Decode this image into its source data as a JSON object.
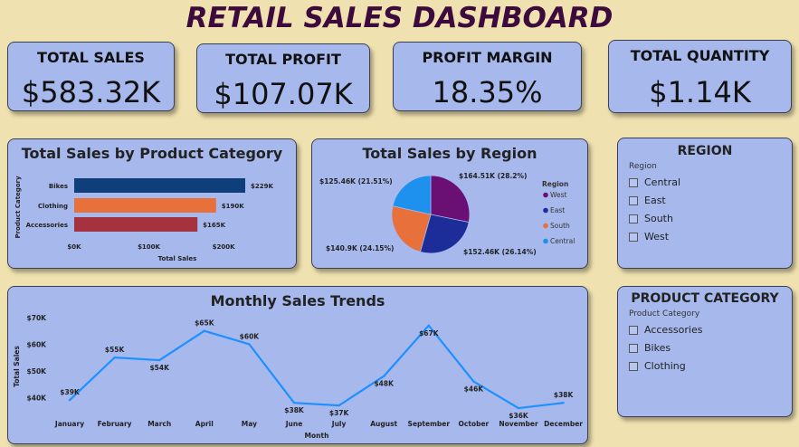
{
  "title": "RETAIL SALES DASHBOARD",
  "kpis": [
    {
      "label": "TOTAL SALES",
      "value": "$583.32K"
    },
    {
      "label": "TOTAL PROFIT",
      "value": "$107.07K"
    },
    {
      "label": "PROFIT MARGIN",
      "value": "18.35%"
    },
    {
      "label": "TOTAL QUANTITY",
      "value": "$1.14K"
    }
  ],
  "region_slicer": {
    "title": "REGION",
    "field": "Region",
    "items": [
      "Central",
      "East",
      "South",
      "West"
    ]
  },
  "category_slicer": {
    "title": "PRODUCT CATEGORY",
    "field": "Product Category",
    "items": [
      "Accessories",
      "Bikes",
      "Clothing"
    ]
  },
  "chart_data": [
    {
      "type": "bar",
      "orientation": "horizontal",
      "title": "Total Sales by Product Category",
      "xlabel": "Total Sales",
      "ylabel": "Product Category",
      "categories": [
        "Bikes",
        "Clothing",
        "Accessories"
      ],
      "values": [
        229,
        190,
        165
      ],
      "data_labels": [
        "$229K",
        "$190K",
        "$165K"
      ],
      "xticks": [
        "$0K",
        "$100K",
        "$200K"
      ],
      "xlim": [
        0,
        229
      ],
      "colors": [
        "#0f3f7a",
        "#e8703a",
        "#a5323f"
      ]
    },
    {
      "type": "pie",
      "title": "Total Sales by Region",
      "legend_title": "Region",
      "legend_position": "right",
      "slices": [
        {
          "name": "West",
          "value": 164.51,
          "label": "$164.51K (28.2%)",
          "color": "#6a0f74"
        },
        {
          "name": "East",
          "value": 152.46,
          "label": "$152.46K (26.14%)",
          "color": "#1c2c98"
        },
        {
          "name": "South",
          "value": 140.9,
          "label": "$140.9K (24.15%)",
          "color": "#e8703a"
        },
        {
          "name": "Central",
          "value": 125.46,
          "label": "$125.46K (21.51%)",
          "color": "#1e90ee"
        }
      ]
    },
    {
      "type": "line",
      "title": "Monthly Sales Trends",
      "xlabel": "Month",
      "ylabel": "Total Sales",
      "categories": [
        "January",
        "February",
        "March",
        "April",
        "May",
        "June",
        "July",
        "August",
        "September",
        "October",
        "November",
        "December"
      ],
      "values": [
        39,
        55,
        54,
        65,
        60,
        38,
        37,
        48,
        67,
        46,
        36,
        38
      ],
      "data_labels": [
        "$39K",
        "$55K",
        "$54K",
        "$65K",
        "$60K",
        "$38K",
        "$37K",
        "$48K",
        "$67K",
        "$46K",
        "$36K",
        "$38K"
      ],
      "yticks": [
        "$40K",
        "$50K",
        "$60K",
        "$70K"
      ],
      "ytick_values": [
        40,
        50,
        60,
        70
      ],
      "ylim": [
        35,
        71
      ],
      "color": "#1e90ff"
    }
  ]
}
